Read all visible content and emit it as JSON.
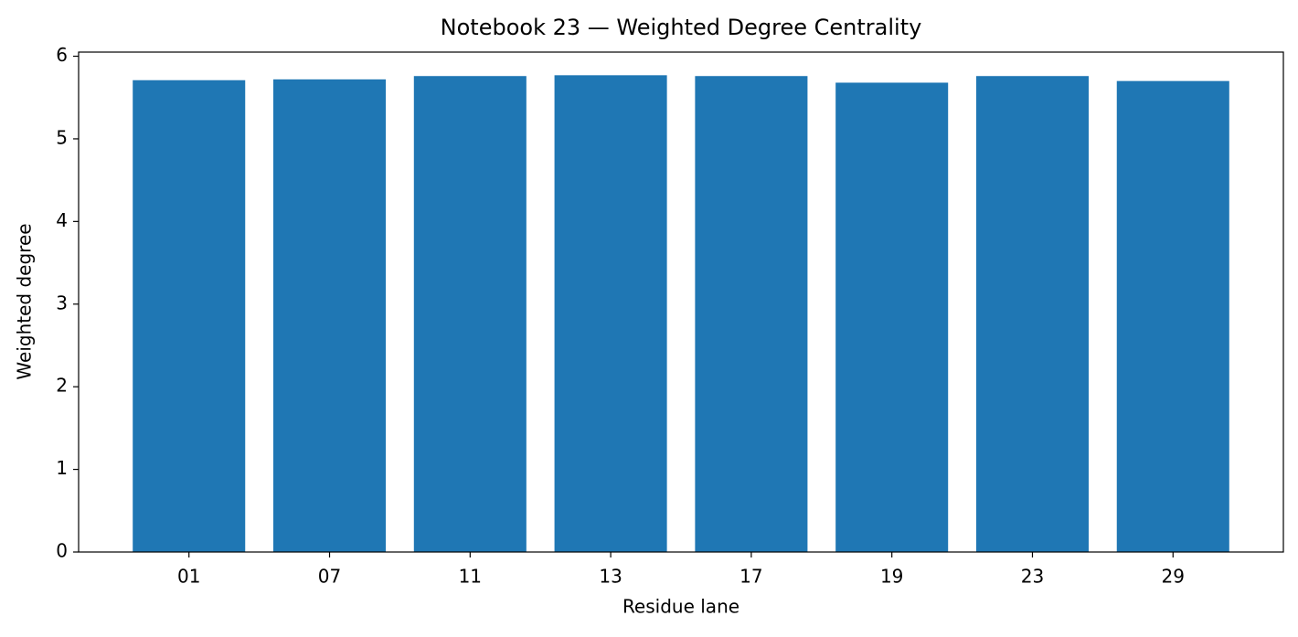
{
  "chart_data": {
    "type": "bar",
    "title": "Notebook 23 — Weighted Degree Centrality",
    "x_label": "Residue lane",
    "y_label": "Weighted degree",
    "categories": [
      "01",
      "07",
      "11",
      "13",
      "17",
      "19",
      "23",
      "29"
    ],
    "values": [
      5.71,
      5.72,
      5.76,
      5.77,
      5.76,
      5.68,
      5.76,
      5.7
    ],
    "color": "#1f77b4",
    "ylim": [
      0,
      6.05
    ],
    "yticks": [
      0,
      1,
      2,
      3,
      4,
      5,
      6
    ],
    "grid": false
  }
}
